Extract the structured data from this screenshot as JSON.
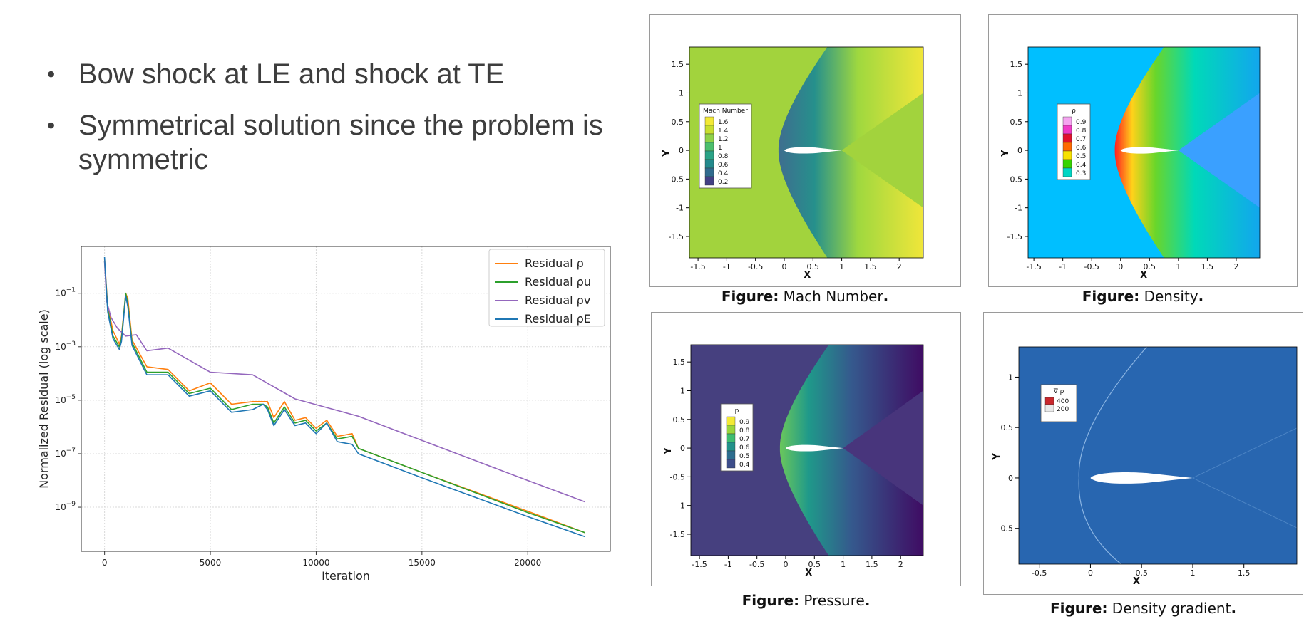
{
  "bullets": [
    "Bow shock at LE and shock at TE",
    "Symmetrical solution since the problem is symmetric"
  ],
  "figures": {
    "mach": {
      "label": "Figure:",
      "title": "Mach Number",
      "period": ".",
      "legend_title": "Mach Number",
      "levels": [
        "1.6",
        "1.4",
        "1.2",
        "1",
        "0.8",
        "0.6",
        "0.4",
        "0.2"
      ],
      "colors": [
        "#f3e935",
        "#c9df2e",
        "#8fd248",
        "#4bbf6d",
        "#2aa386",
        "#238a8d",
        "#306b8e",
        "#423f85",
        "#45166e"
      ]
    },
    "density": {
      "label": "Figure:",
      "title": "Density",
      "period": ".",
      "legend_title": "ρ",
      "levels": [
        "0.9",
        "0.8",
        "0.7",
        "0.6",
        "0.5",
        "0.4",
        "0.3"
      ],
      "colors": [
        "#f5a4f0",
        "#ef3ac6",
        "#e2112d",
        "#ff6a00",
        "#f7e100",
        "#36d400",
        "#00d6c4",
        "#00bfff"
      ]
    },
    "pressure": {
      "label": "Figure:",
      "title": "Pressure",
      "period": ".",
      "legend_title": "p",
      "levels": [
        "0.9",
        "0.8",
        "0.7",
        "0.6",
        "0.5",
        "0.4"
      ],
      "colors": [
        "#f3e935",
        "#9ad53b",
        "#3fbd70",
        "#22928a",
        "#2d6d8e",
        "#3d4d8a",
        "#45166e"
      ]
    },
    "gradient": {
      "label": "Figure:",
      "title": "Density gradient",
      "period": ".",
      "legend_title": "∇ ρ",
      "levels": [
        "400",
        "200"
      ],
      "colors": [
        "#c9272c",
        "#f0a0a0",
        "#e8e8e8",
        "#5b8fc4"
      ]
    }
  },
  "field_axes": {
    "x_ticks": [
      "-1.5",
      "-1",
      "-0.5",
      "0",
      "0.5",
      "1",
      "1.5",
      "2"
    ],
    "y_ticks": [
      "1.5",
      "1",
      "0.5",
      "0",
      "-0.5",
      "-1",
      "-1.5"
    ],
    "xlabel": "X",
    "ylabel": "Y",
    "grad_x_ticks": [
      "-0.5",
      "0",
      "0.5",
      "1",
      "1.5"
    ],
    "grad_y_ticks": [
      "1",
      "0.5",
      "0",
      "-0.5"
    ]
  },
  "chart_data": {
    "type": "line",
    "title": "",
    "xlabel": "Iteration",
    "ylabel": "Normalized Residual (log scale)",
    "log_y": true,
    "xlim": [
      -1100,
      23900
    ],
    "ylim_log10": [
      -10.65,
      0.75
    ],
    "x_ticks": [
      0,
      5000,
      10000,
      15000,
      20000
    ],
    "y_ticks_log10": [
      -1,
      -3,
      -5,
      -7,
      -9
    ],
    "grid": true,
    "legend_position": "top-right",
    "series": [
      {
        "name": "Residual ρ",
        "color": "#ff7f0e",
        "x": [
          0,
          150,
          400,
          700,
          800,
          1000,
          1100,
          1300,
          2000,
          3000,
          4000,
          5000,
          6000,
          7000,
          7500,
          7700,
          8000,
          8500,
          9000,
          9500,
          10000,
          10500,
          11000,
          11700,
          12000,
          15000,
          20000,
          22700
        ],
        "y_log10": [
          0.3,
          -1.5,
          -2.4,
          -2.9,
          -2.6,
          -1.0,
          -1.2,
          -3.0,
          -3.6,
          -4.1,
          -4.5,
          -4.6,
          -5.0,
          -5.3,
          -4.9,
          -5.3,
          -5.5,
          -5.3,
          -5.6,
          -5.9,
          -5.9,
          -6.0,
          -6.2,
          -6.5,
          -6.8,
          -7.7,
          -9.15,
          -9.95
        ]
      },
      {
        "name": "Residual ρu",
        "color": "#2ca02c",
        "x": [
          0,
          150,
          400,
          700,
          800,
          1000,
          1100,
          1300,
          2000,
          3000,
          4000,
          5000,
          6000,
          7000,
          7500,
          7700,
          8000,
          8500,
          9000,
          9500,
          10000,
          10500,
          11000,
          11700,
          12000,
          15000,
          20000,
          22700
        ],
        "y_log10": [
          0.2,
          -1.6,
          -2.6,
          -3.0,
          -2.7,
          -1.0,
          -1.4,
          -3.1,
          -3.8,
          -4.2,
          -4.6,
          -4.8,
          -5.2,
          -5.4,
          -5.0,
          -5.5,
          -5.7,
          -5.5,
          -5.7,
          -6.0,
          -6.0,
          -6.1,
          -6.3,
          -6.6,
          -6.8,
          -7.7,
          -9.2,
          -9.95
        ]
      },
      {
        "name": "Residual ρv",
        "color": "#9467bd",
        "x": [
          0,
          100,
          300,
          600,
          1000,
          1500,
          2000,
          3000,
          5000,
          7000,
          9000,
          12000,
          15000,
          20000,
          22700
        ],
        "y_log10": [
          0.2,
          -1.3,
          -1.9,
          -2.3,
          -2.6,
          -2.8,
          -3.0,
          -3.3,
          -3.8,
          -4.3,
          -4.8,
          -5.6,
          -6.5,
          -8.0,
          -8.8
        ]
      },
      {
        "name": "Residual ρE",
        "color": "#1f77b4",
        "x": [
          0,
          150,
          400,
          700,
          800,
          1000,
          1100,
          1300,
          2000,
          3000,
          4000,
          5000,
          6000,
          7000,
          7500,
          7700,
          8000,
          8500,
          9000,
          9500,
          10000,
          10500,
          11000,
          11700,
          12000,
          15000,
          20000,
          22700
        ],
        "y_log10": [
          0.35,
          -1.7,
          -2.7,
          -3.1,
          -2.8,
          -1.1,
          -1.5,
          -3.2,
          -3.9,
          -4.3,
          -4.7,
          -4.9,
          -5.3,
          -5.6,
          -5.0,
          -5.6,
          -5.8,
          -5.6,
          -5.8,
          -6.1,
          -6.1,
          -6.1,
          -6.4,
          -6.9,
          -7.0,
          -7.9,
          -9.35,
          -10.1
        ]
      }
    ]
  }
}
